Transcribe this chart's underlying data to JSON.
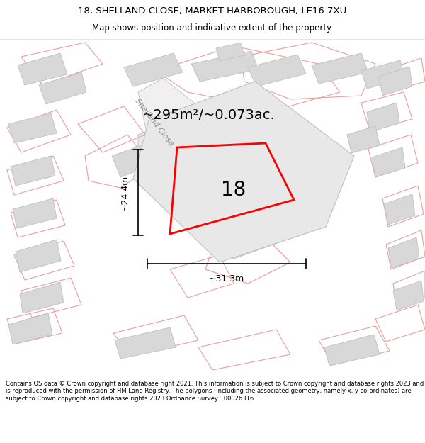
{
  "title_line1": "18, SHELLAND CLOSE, MARKET HARBOROUGH, LE16 7XU",
  "title_line2": "Map shows position and indicative extent of the property.",
  "footer_text": "Contains OS data © Crown copyright and database right 2021. This information is subject to Crown copyright and database rights 2023 and is reproduced with the permission of HM Land Registry. The polygons (including the associated geometry, namely x, y co-ordinates) are subject to Crown copyright and database rights 2023 Ordnance Survey 100026316.",
  "area_label": "~295m²/~0.073ac.",
  "number_label": "18",
  "width_label": "~31.3m",
  "height_label": "~24.4m",
  "street_label": "Shelland Close",
  "map_bg": "#ffffff",
  "plot_border_color": "#ff0000",
  "pink": "#e8a0a0",
  "grey_fill": "#d8d8d8",
  "grey_outline": "#c0c0c0",
  "title_fontsize": 9.5,
  "subtitle_fontsize": 8.5,
  "footer_fontsize": 6.0,
  "area_fontsize": 14,
  "number_fontsize": 20,
  "dim_fontsize": 9,
  "street_fontsize": 8
}
